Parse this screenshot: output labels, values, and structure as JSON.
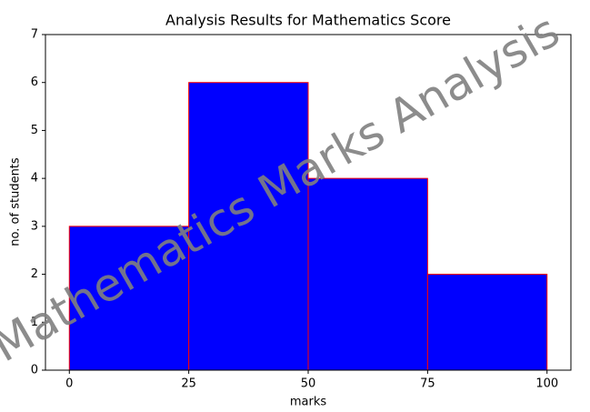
{
  "chart_data": {
    "type": "histogram",
    "title": "Analysis Results for Mathematics Score",
    "x_label": "marks",
    "y_label": "no. of students",
    "watermark": "Mathematics Marks Analysis",
    "bins": [
      0,
      25,
      50,
      75,
      100
    ],
    "values": [
      3,
      6,
      4,
      2
    ],
    "color": "#0000ff",
    "edge_color": "#ff0000",
    "xlim": [
      -5,
      105
    ],
    "xticks": [
      0,
      25,
      50,
      75,
      100
    ],
    "ylim": [
      0,
      7
    ],
    "yticks": [
      0,
      1,
      2,
      3,
      4,
      5,
      6,
      7
    ]
  }
}
